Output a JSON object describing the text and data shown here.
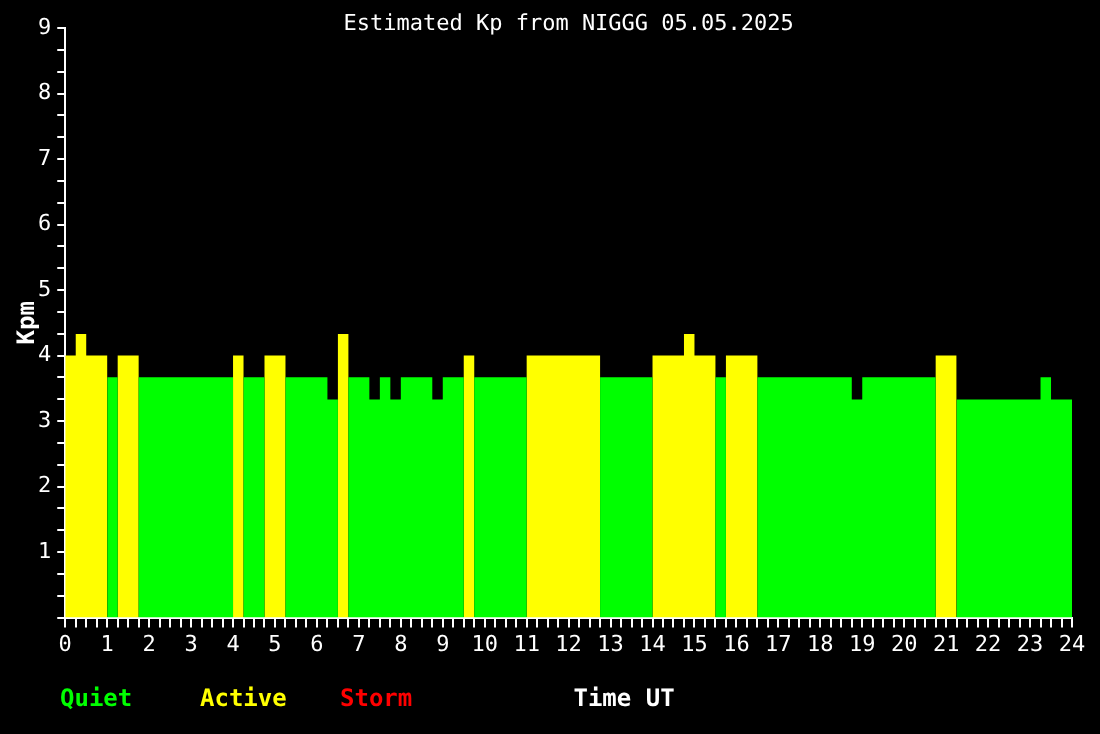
{
  "chart_data": {
    "type": "area",
    "title": "Estimated Kp from NIGGG 05.05.2025",
    "xlabel": "Time UT",
    "ylabel": "Kpm",
    "series": [
      {
        "name": "Quiet",
        "color": "#00ff00",
        "x": [
          1,
          1.25,
          1.25,
          1.75,
          1.75,
          4,
          4,
          4.25,
          4.25,
          4.75,
          4.75,
          5.25,
          5.25,
          6.25,
          6.25,
          6.5,
          6.5,
          6.75,
          6.75,
          7.25,
          7.25,
          7.5,
          7.5,
          7.75,
          7.75,
          8,
          8,
          8.75,
          8.75,
          9,
          9,
          9.5,
          9.5,
          9.75,
          9.75,
          11,
          11,
          12.75,
          12.75,
          14,
          14,
          15.5,
          15.5,
          15.75,
          15.75,
          16.5,
          16.5,
          18.75,
          18.75,
          19,
          19,
          20.75,
          20.75,
          21.25,
          21.25,
          23.25,
          23.25,
          23.5,
          23.5,
          24
        ],
        "values": [
          3.67,
          3.67,
          0,
          0,
          3.67,
          3.67,
          0,
          0,
          3.67,
          3.67,
          0,
          0,
          3.67,
          3.67,
          3.33,
          3.33,
          0,
          0,
          3.67,
          3.67,
          3.33,
          3.33,
          3.67,
          3.67,
          3.33,
          3.33,
          3.67,
          3.67,
          3.33,
          3.33,
          3.67,
          3.67,
          0,
          0,
          3.67,
          3.67,
          0,
          0,
          3.67,
          3.67,
          0,
          0,
          3.67,
          3.67,
          0,
          0,
          3.67,
          3.67,
          3.33,
          3.33,
          3.67,
          3.67,
          0,
          0,
          3.33,
          3.33,
          3.67,
          3.67,
          3.33,
          3.33
        ]
      },
      {
        "name": "Active",
        "color": "#ffff00",
        "x": [
          0,
          0.25,
          0.25,
          0.5,
          0.5,
          1,
          1,
          1.25,
          1.25,
          1.75,
          1.75,
          4,
          4,
          4.25,
          4.25,
          4.75,
          4.75,
          5.25,
          5.25,
          6.5,
          6.5,
          6.75,
          6.75,
          9.5,
          9.5,
          9.75,
          9.75,
          11,
          11,
          12.75,
          12.75,
          14,
          14,
          14.75,
          14.75,
          15,
          15,
          15.5,
          15.5,
          15.75,
          15.75,
          16.5,
          16.5,
          20.75,
          20.75,
          21.25
        ],
        "values": [
          4,
          4,
          4.33,
          4.33,
          4,
          4,
          0,
          0,
          4,
          4,
          0,
          0,
          4,
          4,
          0,
          0,
          4,
          4,
          0,
          0,
          4.33,
          4.33,
          0,
          0,
          4,
          4,
          0,
          0,
          4,
          4,
          0,
          0,
          4,
          4,
          4.33,
          4.33,
          4,
          4,
          0,
          0,
          4,
          4,
          0,
          0,
          4,
          4
        ]
      },
      {
        "name": "Storm",
        "color": "#ff0000"
      }
    ],
    "xlim": [
      0,
      24
    ],
    "xticks": [
      0,
      {
        "value": 0.25,
        "label": null
      },
      {
        "value": 0.5,
        "label": null
      },
      {
        "value": 0.75,
        "label": null
      },
      1,
      {
        "value": 1.25,
        "label": null
      },
      {
        "value": 1.5,
        "label": null
      },
      {
        "value": 1.75,
        "label": null
      },
      2,
      {
        "value": 2.25,
        "label": null
      },
      {
        "value": 2.5,
        "label": null
      },
      {
        "value": 2.75,
        "label": null
      },
      3,
      {
        "value": 3.25,
        "label": null
      },
      {
        "value": 3.5,
        "label": null
      },
      {
        "value": 3.75,
        "label": null
      },
      4,
      {
        "value": 4.25,
        "label": null
      },
      {
        "value": 4.5,
        "label": null
      },
      {
        "value": 4.75,
        "label": null
      },
      5,
      {
        "value": 5.25,
        "label": null
      },
      {
        "value": 5.5,
        "label": null
      },
      {
        "value": 5.75,
        "label": null
      },
      6,
      {
        "value": 6.25,
        "label": null
      },
      {
        "value": 6.5,
        "label": null
      },
      {
        "value": 6.75,
        "label": null
      },
      7,
      {
        "value": 7.25,
        "label": null
      },
      {
        "value": 7.5,
        "label": null
      },
      {
        "value": 7.75,
        "label": null
      },
      8,
      {
        "value": 8.25,
        "label": null
      },
      {
        "value": 8.5,
        "label": null
      },
      {
        "value": 8.75,
        "label": null
      },
      9,
      {
        "value": 9.25,
        "label": null
      },
      {
        "value": 9.5,
        "label": null
      },
      {
        "value": 9.75,
        "label": null
      },
      10,
      {
        "value": 10.25,
        "label": null
      },
      {
        "value": 10.5,
        "label": null
      },
      {
        "value": 10.75,
        "label": null
      },
      11,
      {
        "value": 11.25,
        "label": null
      },
      {
        "value": 11.5,
        "label": null
      },
      {
        "value": 11.75,
        "label": null
      },
      12,
      {
        "value": 12.25,
        "label": null
      },
      {
        "value": 12.5,
        "label": null
      },
      {
        "value": 12.75,
        "label": null
      },
      13,
      {
        "value": 13.25,
        "label": null
      },
      {
        "value": 13.5,
        "label": null
      },
      {
        "value": 13.75,
        "label": null
      },
      14,
      {
        "value": 14.25,
        "label": null
      },
      {
        "value": 14.5,
        "label": null
      },
      {
        "value": 14.75,
        "label": null
      },
      15,
      {
        "value": 15.25,
        "label": null
      },
      {
        "value": 15.5,
        "label": null
      },
      {
        "value": 15.75,
        "label": null
      },
      16,
      {
        "value": 16.25,
        "label": null
      },
      {
        "value": 16.5,
        "label": null
      },
      {
        "value": 16.75,
        "label": null
      },
      17,
      {
        "value": 17.25,
        "label": null
      },
      {
        "value": 17.5,
        "label": null
      },
      {
        "value": 17.75,
        "label": null
      },
      18,
      {
        "value": 18.25,
        "label": null
      },
      {
        "value": 18.5,
        "label": null
      },
      {
        "value": 18.75,
        "label": null
      },
      19,
      {
        "value": 19.25,
        "label": null
      },
      {
        "value": 19.5,
        "label": null
      },
      {
        "value": 19.75,
        "label": null
      },
      20,
      {
        "value": 20.25,
        "label": null
      },
      {
        "value": 20.5,
        "label": null
      },
      {
        "value": 20.75,
        "label": null
      },
      21,
      {
        "value": 21.25,
        "label": null
      },
      {
        "value": 21.5,
        "label": null
      },
      {
        "value": 21.75,
        "label": null
      },
      22,
      {
        "value": 22.25,
        "label": null
      },
      {
        "value": 22.5,
        "label": null
      },
      {
        "value": 22.75,
        "label": null
      },
      23,
      {
        "value": 23.25,
        "label": null
      },
      {
        "value": 23.5,
        "label": null
      },
      {
        "value": 23.75,
        "label": null
      },
      24
    ],
    "ylim": [
      0,
      9
    ],
    "yticks": [
      {
        "value": 0,
        "label": null
      },
      {
        "value": 0.33,
        "label": null
      },
      {
        "value": 0.67,
        "label": null
      },
      1,
      {
        "value": 1.33,
        "label": null
      },
      {
        "value": 1.67,
        "label": null
      },
      2,
      {
        "value": 2.33,
        "label": null
      },
      {
        "value": 2.67,
        "label": null
      },
      3,
      {
        "value": 3.33,
        "label": null
      },
      {
        "value": 3.67,
        "label": null
      },
      4,
      {
        "value": 4.33,
        "label": null
      },
      {
        "value": 4.67,
        "label": null
      },
      5,
      {
        "value": 5.33,
        "label": null
      },
      {
        "value": 5.67,
        "label": null
      },
      6,
      {
        "value": 6.33,
        "label": null
      },
      {
        "value": 6.67,
        "label": null
      },
      7,
      {
        "value": 7.33,
        "label": null
      },
      {
        "value": 7.67,
        "label": null
      },
      8,
      {
        "value": 8.33,
        "label": null
      },
      {
        "value": 8.67,
        "label": null
      },
      9
    ],
    "grid": false,
    "legend": "bottom left"
  }
}
